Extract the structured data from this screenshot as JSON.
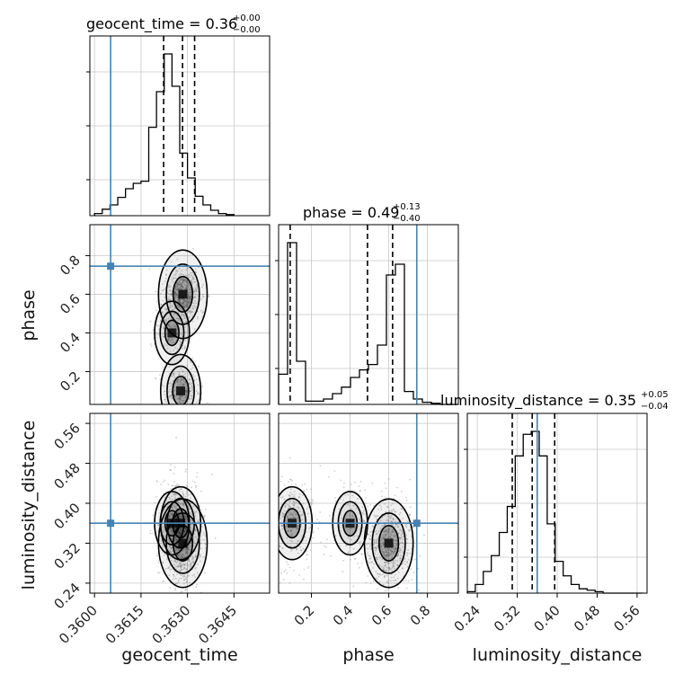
{
  "chart_data": {
    "type": "corner",
    "parameters": [
      "geocent_time",
      "phase",
      "luminosity_distance"
    ],
    "truths": {
      "geocent_time": 0.36052,
      "phase": 0.745,
      "luminosity_distance": 0.36
    },
    "titles": [
      {
        "param": "geocent_time",
        "prefix": "geocent_time = 0.36",
        "upper": "+0.00",
        "lower": "−0.00"
      },
      {
        "param": "phase",
        "prefix": "phase = 0.49",
        "upper": "+0.13",
        "lower": "−0.40"
      },
      {
        "param": "luminosity_distance",
        "prefix": "luminosity_distance = 0.35",
        "upper": "+0.05",
        "lower": "−0.04"
      }
    ],
    "axes": {
      "geocent_time": {
        "range": [
          0.35985,
          0.36565
        ],
        "ticks": [
          "0.3600",
          "0.3615",
          "0.3630",
          "0.3645"
        ],
        "tick_values": [
          0.36,
          0.3615,
          0.363,
          0.3645
        ]
      },
      "phase": {
        "range": [
          0.03,
          0.96
        ],
        "ticks": [
          "0.2",
          "0.4",
          "0.6",
          "0.8"
        ],
        "tick_values": [
          0.2,
          0.4,
          0.6,
          0.8
        ]
      },
      "luminosity_distance": {
        "range": [
          0.22,
          0.58
        ],
        "ticks": [
          "0.24",
          "0.32",
          "0.40",
          "0.48",
          "0.56"
        ],
        "tick_values": [
          0.24,
          0.32,
          0.4,
          0.48,
          0.56
        ]
      }
    },
    "histograms": {
      "geocent_time": {
        "edges_start": 0.36,
        "bin_width": 0.00025,
        "counts": [
          2,
          6,
          10,
          17,
          25,
          30,
          32,
          82,
          115,
          150,
          120,
          58,
          35,
          18,
          10,
          5,
          2,
          1
        ],
        "quantiles": [
          0.36223,
          0.36284,
          0.36323
        ]
      },
      "phase": {
        "edges_start": 0.03,
        "bin_width": 0.0465,
        "counts": [
          28,
          150,
          40,
          3,
          3,
          5,
          10,
          16,
          25,
          32,
          37,
          55,
          120,
          130,
          12,
          5,
          2,
          1,
          0,
          0
        ],
        "quantiles": [
          0.09,
          0.49,
          0.62
        ]
      },
      "luminosity_distance": {
        "edges_start": 0.22,
        "bin_width": 0.016,
        "counts": [
          1,
          6,
          15,
          26,
          42,
          60,
          95,
          110,
          112,
          95,
          48,
          22,
          12,
          6,
          3,
          2,
          1,
          0,
          0,
          0,
          0,
          0
        ],
        "quantiles": [
          0.31,
          0.35,
          0.395
        ]
      }
    },
    "posterior_modes": [
      {
        "geocent_time": 0.36285,
        "phase": 0.6,
        "luminosity_distance": 0.32,
        "weight": 0.55
      },
      {
        "geocent_time": 0.36278,
        "phase": 0.1,
        "luminosity_distance": 0.36,
        "weight": 0.3
      },
      {
        "geocent_time": 0.3625,
        "phase": 0.4,
        "luminosity_distance": 0.36,
        "weight": 0.15
      }
    ],
    "grid": true,
    "colors": {
      "truth": "#4682b4",
      "hist": "#000000",
      "quantile": "#000000",
      "points": "#7a7a7a",
      "grid": "#c8c8c8"
    }
  }
}
